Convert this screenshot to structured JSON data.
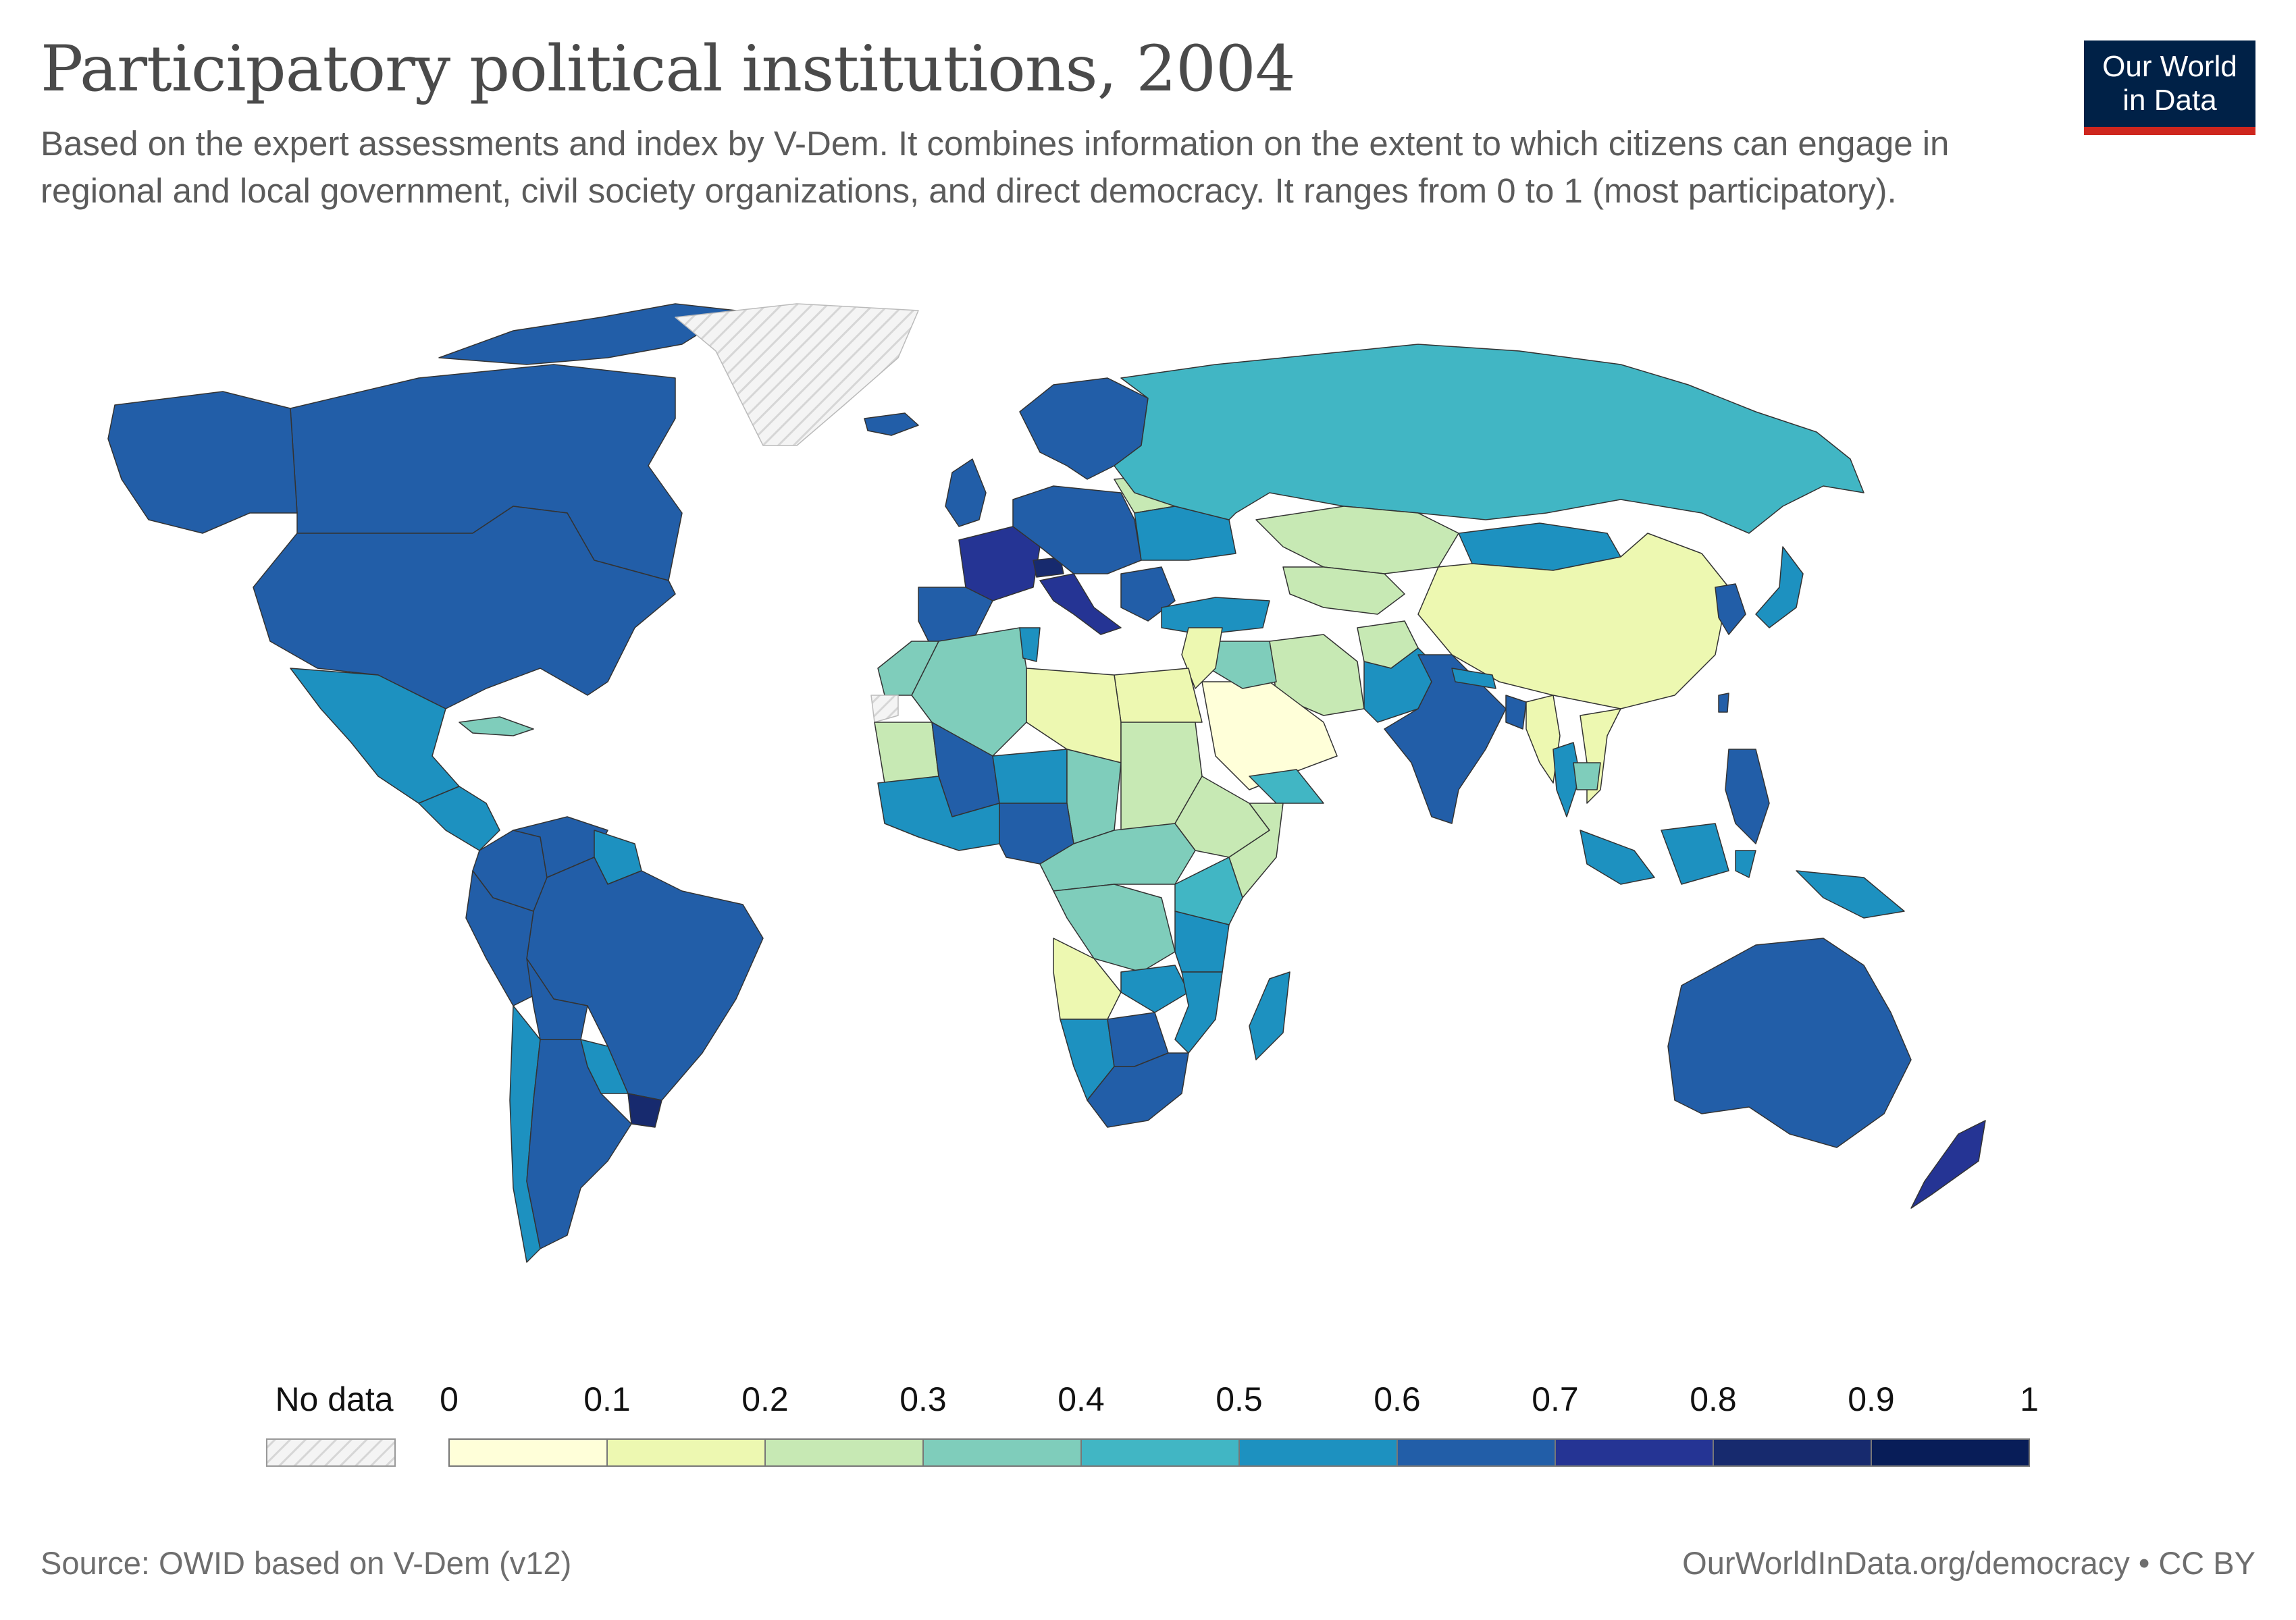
{
  "title": "Participatory political institutions, 2004",
  "subtitle": "Based on the expert assessments and index by V-Dem. It combines information on the extent to which citizens can engage in regional and local government, civil society organizations, and direct democracy. It ranges from 0 to 1 (most participatory).",
  "logo": {
    "line1": "Our World",
    "line2": "in Data"
  },
  "legend": {
    "no_data_label": "No data",
    "ticks": [
      "0",
      "0.1",
      "0.2",
      "0.3",
      "0.4",
      "0.5",
      "0.6",
      "0.7",
      "0.8",
      "0.9",
      "1"
    ],
    "bins": [
      {
        "min": 0.0,
        "max": 0.1,
        "color": "#ffffd9"
      },
      {
        "min": 0.1,
        "max": 0.2,
        "color": "#edf8b1"
      },
      {
        "min": 0.2,
        "max": 0.3,
        "color": "#c7e9b4"
      },
      {
        "min": 0.3,
        "max": 0.4,
        "color": "#7fcdbb"
      },
      {
        "min": 0.4,
        "max": 0.5,
        "color": "#41b6c4"
      },
      {
        "min": 0.5,
        "max": 0.6,
        "color": "#1d91c0"
      },
      {
        "min": 0.6,
        "max": 0.7,
        "color": "#225ea8"
      },
      {
        "min": 0.7,
        "max": 0.8,
        "color": "#253494"
      },
      {
        "min": 0.8,
        "max": 0.9,
        "color": "#172a6e"
      },
      {
        "min": 0.9,
        "max": 1.0,
        "color": "#081d58"
      }
    ]
  },
  "chart_data": {
    "type": "choropleth",
    "scale": {
      "min": 0,
      "max": 1
    },
    "regions": [
      {
        "name": "Canada",
        "value": 0.65
      },
      {
        "name": "Alaska",
        "value": 0.65
      },
      {
        "name": "Greenland",
        "value": null
      },
      {
        "name": "Iceland",
        "value": 0.65
      },
      {
        "name": "United States",
        "value": 0.65
      },
      {
        "name": "Mexico",
        "value": 0.55
      },
      {
        "name": "Central America",
        "value": 0.55
      },
      {
        "name": "Cuba",
        "value": 0.35
      },
      {
        "name": "Colombia",
        "value": 0.65
      },
      {
        "name": "Venezuela",
        "value": 0.65
      },
      {
        "name": "Guyana",
        "value": 0.55
      },
      {
        "name": "Brazil",
        "value": 0.65
      },
      {
        "name": "Peru",
        "value": 0.65
      },
      {
        "name": "Bolivia",
        "value": 0.65
      },
      {
        "name": "Chile",
        "value": 0.55
      },
      {
        "name": "Argentina",
        "value": 0.65
      },
      {
        "name": "Paraguay",
        "value": 0.55
      },
      {
        "name": "Uruguay",
        "value": 0.85
      },
      {
        "name": "Scandinavia",
        "value": 0.65
      },
      {
        "name": "United Kingdom",
        "value": 0.65
      },
      {
        "name": "France",
        "value": 0.75
      },
      {
        "name": "Iberia",
        "value": 0.65
      },
      {
        "name": "Italy",
        "value": 0.75
      },
      {
        "name": "Switzerland",
        "value": 0.85
      },
      {
        "name": "Central Europe",
        "value": 0.65
      },
      {
        "name": "Belarus",
        "value": 0.25
      },
      {
        "name": "Ukraine",
        "value": 0.55
      },
      {
        "name": "Russia",
        "value": 0.45
      },
      {
        "name": "Turkey",
        "value": 0.55
      },
      {
        "name": "Kazakhstan",
        "value": 0.25
      },
      {
        "name": "Central Asia",
        "value": 0.25
      },
      {
        "name": "Mongolia",
        "value": 0.55
      },
      {
        "name": "China",
        "value": 0.15
      },
      {
        "name": "Korea",
        "value": 0.65
      },
      {
        "name": "Japan",
        "value": 0.55
      },
      {
        "name": "Taiwan",
        "value": 0.65
      },
      {
        "name": "Iran",
        "value": 0.25
      },
      {
        "name": "Afghanistan",
        "value": 0.25
      },
      {
        "name": "Pakistan",
        "value": 0.55
      },
      {
        "name": "India",
        "value": 0.65
      },
      {
        "name": "Nepal",
        "value": 0.55
      },
      {
        "name": "Bangladesh",
        "value": 0.65
      },
      {
        "name": "Myanmar",
        "value": 0.15
      },
      {
        "name": "Thailand",
        "value": 0.55
      },
      {
        "name": "Vietnam",
        "value": 0.15
      },
      {
        "name": "Cambodia",
        "value": 0.35
      },
      {
        "name": "Philippines",
        "value": 0.65
      },
      {
        "name": "Indonesia",
        "value": 0.55
      },
      {
        "name": "Papua New Guinea",
        "value": 0.55
      },
      {
        "name": "Australia",
        "value": 0.65
      },
      {
        "name": "New Zealand",
        "value": 0.75
      },
      {
        "name": "Arabian Peninsula",
        "value": 0.05
      },
      {
        "name": "Yemen",
        "value": 0.45
      },
      {
        "name": "Iraq",
        "value": 0.35
      },
      {
        "name": "Syria and Jordan",
        "value": 0.15
      },
      {
        "name": "Egypt",
        "value": 0.15
      },
      {
        "name": "Libya",
        "value": 0.15
      },
      {
        "name": "Algeria",
        "value": 0.35
      },
      {
        "name": "Morocco",
        "value": 0.35
      },
      {
        "name": "Tunisia",
        "value": 0.55
      },
      {
        "name": "Western Sahara",
        "value": null
      },
      {
        "name": "Mauritania",
        "value": 0.25
      },
      {
        "name": "Mali",
        "value": 0.65
      },
      {
        "name": "Niger",
        "value": 0.55
      },
      {
        "name": "Chad",
        "value": 0.35
      },
      {
        "name": "Sudan",
        "value": 0.25
      },
      {
        "name": "Ethiopia",
        "value": 0.25
      },
      {
        "name": "Somalia",
        "value": 0.25
      },
      {
        "name": "West Africa coast",
        "value": 0.55
      },
      {
        "name": "Nigeria",
        "value": 0.65
      },
      {
        "name": "Central Africa",
        "value": 0.35
      },
      {
        "name": "DR Congo",
        "value": 0.35
      },
      {
        "name": "Kenya",
        "value": 0.45
      },
      {
        "name": "Tanzania",
        "value": 0.55
      },
      {
        "name": "Angola",
        "value": 0.15
      },
      {
        "name": "Zambia",
        "value": 0.55
      },
      {
        "name": "Mozambique",
        "value": 0.55
      },
      {
        "name": "Namibia",
        "value": 0.55
      },
      {
        "name": "Botswana",
        "value": 0.65
      },
      {
        "name": "South Africa",
        "value": 0.65
      },
      {
        "name": "Madagascar",
        "value": 0.55
      }
    ]
  },
  "footer": {
    "source": "Source: OWID based on V-Dem (v12)",
    "url": "OurWorldInData.org/democracy • CC BY"
  }
}
